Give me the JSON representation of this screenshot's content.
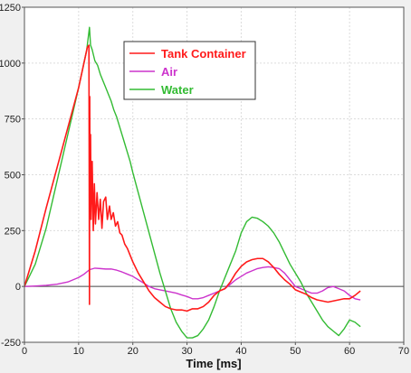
{
  "chart_data": {
    "type": "line",
    "title": "",
    "xlabel": "Time [ms]",
    "ylabel": "",
    "xlim": [
      0,
      70
    ],
    "ylim": [
      -250,
      1250
    ],
    "xticks": [
      0,
      10,
      20,
      30,
      40,
      50,
      60,
      70
    ],
    "yticks": [
      -250,
      0,
      250,
      500,
      750,
      1000,
      1250
    ],
    "grid": true,
    "legend_position": "top-center",
    "background": "#ffffff",
    "series": [
      {
        "name": "Tank Container",
        "color": "#ff1a1a",
        "points": [
          [
            0,
            0
          ],
          [
            2,
            160
          ],
          [
            4,
            350
          ],
          [
            6,
            530
          ],
          [
            8,
            710
          ],
          [
            10,
            890
          ],
          [
            11.6,
            1070
          ],
          [
            11.9,
            1080
          ],
          [
            12.0,
            -80
          ],
          [
            12.05,
            850
          ],
          [
            12.1,
            420
          ],
          [
            12.2,
            680
          ],
          [
            12.3,
            300
          ],
          [
            12.5,
            560
          ],
          [
            12.7,
            250
          ],
          [
            12.9,
            460
          ],
          [
            13.1,
            280
          ],
          [
            13.4,
            420
          ],
          [
            13.7,
            300
          ],
          [
            14.0,
            390
          ],
          [
            14.3,
            260
          ],
          [
            14.6,
            380
          ],
          [
            15.0,
            400
          ],
          [
            15.3,
            300
          ],
          [
            15.7,
            360
          ],
          [
            16.0,
            300
          ],
          [
            16.4,
            330
          ],
          [
            16.8,
            270
          ],
          [
            17.2,
            290
          ],
          [
            17.6,
            240
          ],
          [
            18.0,
            230
          ],
          [
            18.5,
            190
          ],
          [
            19.0,
            170
          ],
          [
            19.5,
            140
          ],
          [
            20.0,
            110
          ],
          [
            21,
            60
          ],
          [
            22,
            20
          ],
          [
            23,
            -20
          ],
          [
            24,
            -50
          ],
          [
            25,
            -70
          ],
          [
            26,
            -90
          ],
          [
            27,
            -100
          ],
          [
            28,
            -105
          ],
          [
            29,
            -105
          ],
          [
            30,
            -110
          ],
          [
            31,
            -100
          ],
          [
            32,
            -100
          ],
          [
            33,
            -90
          ],
          [
            34,
            -70
          ],
          [
            35,
            -40
          ],
          [
            36,
            -20
          ],
          [
            37,
            -10
          ],
          [
            38,
            20
          ],
          [
            39,
            60
          ],
          [
            40,
            90
          ],
          [
            41,
            110
          ],
          [
            42,
            120
          ],
          [
            43,
            125
          ],
          [
            44,
            125
          ],
          [
            45,
            110
          ],
          [
            46,
            85
          ],
          [
            47,
            55
          ],
          [
            48,
            30
          ],
          [
            49,
            10
          ],
          [
            50,
            -15
          ],
          [
            51,
            -25
          ],
          [
            52,
            -35
          ],
          [
            53,
            -50
          ],
          [
            54,
            -60
          ],
          [
            55,
            -65
          ],
          [
            56,
            -70
          ],
          [
            57,
            -65
          ],
          [
            58,
            -60
          ],
          [
            59,
            -55
          ],
          [
            60,
            -55
          ],
          [
            61,
            -40
          ],
          [
            62,
            -20
          ]
        ]
      },
      {
        "name": "Air",
        "color": "#cc33cc",
        "points": [
          [
            0,
            0
          ],
          [
            2,
            2
          ],
          [
            4,
            5
          ],
          [
            6,
            10
          ],
          [
            8,
            20
          ],
          [
            10,
            40
          ],
          [
            11,
            55
          ],
          [
            12,
            75
          ],
          [
            13,
            82
          ],
          [
            14,
            80
          ],
          [
            15,
            78
          ],
          [
            16,
            78
          ],
          [
            17,
            73
          ],
          [
            18,
            65
          ],
          [
            19,
            55
          ],
          [
            20,
            45
          ],
          [
            21,
            30
          ],
          [
            22,
            15
          ],
          [
            23,
            0
          ],
          [
            24,
            -10
          ],
          [
            25,
            -15
          ],
          [
            26,
            -20
          ],
          [
            27,
            -25
          ],
          [
            28,
            -30
          ],
          [
            29,
            -38
          ],
          [
            30,
            -45
          ],
          [
            31,
            -55
          ],
          [
            32,
            -55
          ],
          [
            33,
            -50
          ],
          [
            34,
            -40
          ],
          [
            35,
            -30
          ],
          [
            36,
            -20
          ],
          [
            37,
            -10
          ],
          [
            38,
            10
          ],
          [
            39,
            30
          ],
          [
            40,
            45
          ],
          [
            41,
            60
          ],
          [
            42,
            70
          ],
          [
            43,
            80
          ],
          [
            44,
            85
          ],
          [
            45,
            88
          ],
          [
            46,
            85
          ],
          [
            47,
            80
          ],
          [
            48,
            60
          ],
          [
            49,
            30
          ],
          [
            50,
            0
          ],
          [
            51,
            -10
          ],
          [
            52,
            -20
          ],
          [
            53,
            -30
          ],
          [
            54,
            -30
          ],
          [
            55,
            -20
          ],
          [
            56,
            -5
          ],
          [
            57,
            0
          ],
          [
            58,
            -10
          ],
          [
            59,
            -20
          ],
          [
            60,
            -40
          ],
          [
            61,
            -55
          ],
          [
            62,
            -60
          ]
        ]
      },
      {
        "name": "Water",
        "color": "#33bb33",
        "points": [
          [
            0,
            0
          ],
          [
            2,
            100
          ],
          [
            4,
            260
          ],
          [
            6,
            470
          ],
          [
            8,
            680
          ],
          [
            10,
            890
          ],
          [
            11.5,
            1060
          ],
          [
            12,
            1160
          ],
          [
            12.2,
            1080
          ],
          [
            12.5,
            1060
          ],
          [
            13,
            1010
          ],
          [
            13.5,
            990
          ],
          [
            14,
            950
          ],
          [
            14.5,
            920
          ],
          [
            15,
            890
          ],
          [
            15.5,
            860
          ],
          [
            16,
            830
          ],
          [
            16.5,
            790
          ],
          [
            17,
            760
          ],
          [
            17.5,
            720
          ],
          [
            18,
            680
          ],
          [
            18.5,
            640
          ],
          [
            19,
            600
          ],
          [
            19.5,
            560
          ],
          [
            20,
            510
          ],
          [
            21,
            420
          ],
          [
            22,
            330
          ],
          [
            23,
            240
          ],
          [
            24,
            150
          ],
          [
            25,
            60
          ],
          [
            26,
            -20
          ],
          [
            27,
            -100
          ],
          [
            28,
            -160
          ],
          [
            29,
            -200
          ],
          [
            30,
            -230
          ],
          [
            31,
            -230
          ],
          [
            32,
            -220
          ],
          [
            33,
            -190
          ],
          [
            34,
            -150
          ],
          [
            35,
            -90
          ],
          [
            36,
            -20
          ],
          [
            37,
            40
          ],
          [
            38,
            100
          ],
          [
            39,
            160
          ],
          [
            40,
            240
          ],
          [
            41,
            290
          ],
          [
            42,
            310
          ],
          [
            43,
            305
          ],
          [
            44,
            290
          ],
          [
            45,
            270
          ],
          [
            46,
            240
          ],
          [
            47,
            200
          ],
          [
            48,
            150
          ],
          [
            49,
            100
          ],
          [
            50,
            60
          ],
          [
            51,
            20
          ],
          [
            52,
            -30
          ],
          [
            53,
            -70
          ],
          [
            54,
            -110
          ],
          [
            55,
            -150
          ],
          [
            56,
            -180
          ],
          [
            57,
            -200
          ],
          [
            58,
            -220
          ],
          [
            59,
            -190
          ],
          [
            60,
            -150
          ],
          [
            61,
            -160
          ],
          [
            62,
            -180
          ]
        ]
      }
    ]
  }
}
